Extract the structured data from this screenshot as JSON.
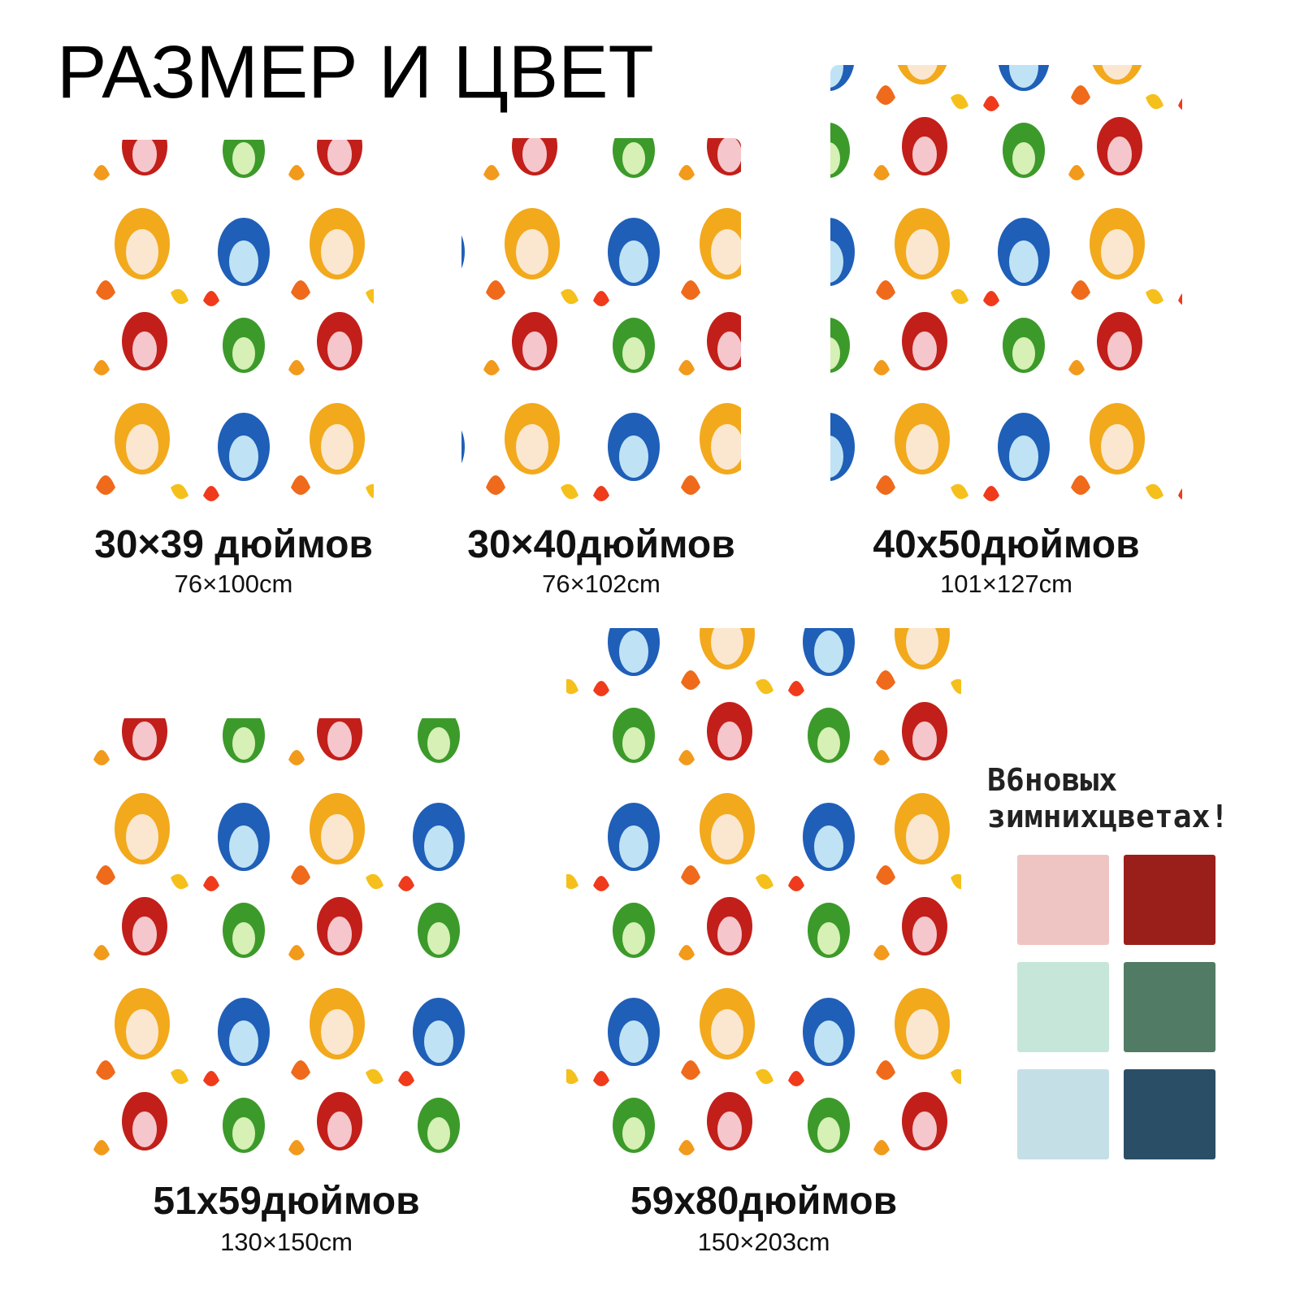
{
  "header": {
    "title": "РАЗМЕР И ЦВЕТ"
  },
  "sizes": [
    {
      "label": "30×39 дюймов",
      "cm": "76×100cm"
    },
    {
      "label": "30×40дюймов",
      "cm": "76×102cm"
    },
    {
      "label": "40x50дюймов",
      "cm": "101×127cm"
    },
    {
      "label": "51x59дюймов",
      "cm": "130×150cm"
    },
    {
      "label": "59x80дюймов",
      "cm": "150×203cm"
    }
  ],
  "colors": {
    "lines": [
      "В6новых",
      "зимнихцветах!"
    ],
    "swatches": [
      "#efc5c3",
      "#9a1f1a",
      "#c7e6da",
      "#527b66",
      "#c5dfe6",
      "#2a4e66"
    ]
  }
}
